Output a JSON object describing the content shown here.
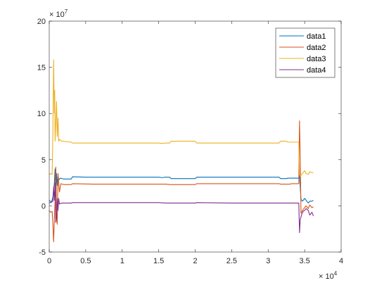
{
  "chart_data": {
    "type": "line",
    "title": "",
    "xlabel": "",
    "ylabel": "",
    "xlim": [
      0,
      4
    ],
    "ylim": [
      -5,
      20
    ],
    "x_exponent_label": {
      "base": "× 10",
      "exp": "4"
    },
    "y_exponent_label": {
      "base": "× 10",
      "exp": "7"
    },
    "x_ticks": [
      "0",
      "0.5",
      "1",
      "1.5",
      "2",
      "2.5",
      "3",
      "3.5",
      "4"
    ],
    "y_ticks": [
      "-5",
      "0",
      "5",
      "10",
      "15",
      "20"
    ],
    "legend_position": "top-right",
    "grid": false,
    "series": [
      {
        "name": "data1",
        "color": "#0072BD",
        "points": [
          [
            0.0,
            0.6
          ],
          [
            0.03,
            0.4
          ],
          [
            0.05,
            0.9
          ],
          [
            0.06,
            1.8
          ],
          [
            0.07,
            2.4
          ],
          [
            0.08,
            4.0
          ],
          [
            0.09,
            1.0
          ],
          [
            0.1,
            3.5
          ],
          [
            0.11,
            2.2
          ],
          [
            0.12,
            3.2
          ],
          [
            0.13,
            2.8
          ],
          [
            0.15,
            3.0
          ],
          [
            0.2,
            2.9
          ],
          [
            0.3,
            2.9
          ],
          [
            0.32,
            3.15
          ],
          [
            0.5,
            3.1
          ],
          [
            1.0,
            3.1
          ],
          [
            1.5,
            3.1
          ],
          [
            1.55,
            3.05
          ],
          [
            1.58,
            3.1
          ],
          [
            1.65,
            3.1
          ],
          [
            1.67,
            2.95
          ],
          [
            2.0,
            2.95
          ],
          [
            2.02,
            3.1
          ],
          [
            2.5,
            3.1
          ],
          [
            3.0,
            3.1
          ],
          [
            3.15,
            3.1
          ],
          [
            3.17,
            2.95
          ],
          [
            3.25,
            2.95
          ],
          [
            3.27,
            3.0
          ],
          [
            3.42,
            3.0
          ],
          [
            3.43,
            3.3
          ],
          [
            3.45,
            0.7
          ],
          [
            3.47,
            0.5
          ],
          [
            3.5,
            0.8
          ],
          [
            3.52,
            0.6
          ],
          [
            3.55,
            0.3
          ],
          [
            3.57,
            0.5
          ],
          [
            3.6,
            0.5
          ],
          [
            3.62,
            0.6
          ]
        ]
      },
      {
        "name": "data2",
        "color": "#D95319",
        "points": [
          [
            0.0,
            -0.5
          ],
          [
            0.02,
            -0.7
          ],
          [
            0.04,
            -0.6
          ],
          [
            0.05,
            -2.0
          ],
          [
            0.06,
            -3.9
          ],
          [
            0.07,
            -1.5
          ],
          [
            0.08,
            0.5
          ],
          [
            0.09,
            4.2
          ],
          [
            0.1,
            -1.0
          ],
          [
            0.11,
            -2.0
          ],
          [
            0.12,
            3.5
          ],
          [
            0.13,
            2.5
          ],
          [
            0.14,
            1.5
          ],
          [
            0.16,
            2.4
          ],
          [
            0.2,
            2.3
          ],
          [
            0.3,
            2.3
          ],
          [
            0.32,
            2.4
          ],
          [
            0.6,
            2.35
          ],
          [
            1.0,
            2.35
          ],
          [
            1.5,
            2.35
          ],
          [
            1.6,
            2.35
          ],
          [
            1.65,
            2.3
          ],
          [
            2.0,
            2.3
          ],
          [
            2.02,
            2.4
          ],
          [
            2.5,
            2.4
          ],
          [
            3.0,
            2.4
          ],
          [
            3.15,
            2.4
          ],
          [
            3.17,
            2.35
          ],
          [
            3.3,
            2.35
          ],
          [
            3.32,
            2.4
          ],
          [
            3.42,
            2.4
          ],
          [
            3.43,
            9.2
          ],
          [
            3.44,
            5.0
          ],
          [
            3.45,
            -0.8
          ],
          [
            3.47,
            -0.5
          ],
          [
            3.5,
            -0.2
          ],
          [
            3.52,
            0.0
          ],
          [
            3.55,
            -0.3
          ],
          [
            3.57,
            0.1
          ],
          [
            3.6,
            -0.2
          ],
          [
            3.62,
            -0.1
          ]
        ]
      },
      {
        "name": "data3",
        "color": "#EDB120",
        "points": [
          [
            0.0,
            3.4
          ],
          [
            0.02,
            3.5
          ],
          [
            0.04,
            3.4
          ],
          [
            0.05,
            8.0
          ],
          [
            0.06,
            15.8
          ],
          [
            0.07,
            10.0
          ],
          [
            0.075,
            12.5
          ],
          [
            0.08,
            7.0
          ],
          [
            0.09,
            9.0
          ],
          [
            0.1,
            11.3
          ],
          [
            0.11,
            7.5
          ],
          [
            0.12,
            9.5
          ],
          [
            0.13,
            7.0
          ],
          [
            0.14,
            7.2
          ],
          [
            0.17,
            7.0
          ],
          [
            0.3,
            6.9
          ],
          [
            0.32,
            6.8
          ],
          [
            0.6,
            6.8
          ],
          [
            1.0,
            6.8
          ],
          [
            1.5,
            6.8
          ],
          [
            1.55,
            6.75
          ],
          [
            1.58,
            6.8
          ],
          [
            1.65,
            6.8
          ],
          [
            1.67,
            7.0
          ],
          [
            2.0,
            7.0
          ],
          [
            2.02,
            6.8
          ],
          [
            2.5,
            6.8
          ],
          [
            3.0,
            6.8
          ],
          [
            3.15,
            6.8
          ],
          [
            3.17,
            7.0
          ],
          [
            3.25,
            7.0
          ],
          [
            3.27,
            6.9
          ],
          [
            3.42,
            6.9
          ],
          [
            3.43,
            3.6
          ],
          [
            3.44,
            3.2
          ],
          [
            3.47,
            3.5
          ],
          [
            3.5,
            3.8
          ],
          [
            3.52,
            3.5
          ],
          [
            3.55,
            3.4
          ],
          [
            3.57,
            3.7
          ],
          [
            3.6,
            3.6
          ],
          [
            3.62,
            3.6
          ]
        ]
      },
      {
        "name": "data4",
        "color": "#7E2F8E",
        "points": [
          [
            0.0,
            0.3
          ],
          [
            0.03,
            0.4
          ],
          [
            0.05,
            0.5
          ],
          [
            0.06,
            2.0
          ],
          [
            0.07,
            0.6
          ],
          [
            0.08,
            2.5
          ],
          [
            0.09,
            -1.8
          ],
          [
            0.1,
            -1.0
          ],
          [
            0.11,
            0.8
          ],
          [
            0.12,
            -0.5
          ],
          [
            0.13,
            0.8
          ],
          [
            0.14,
            0.2
          ],
          [
            0.17,
            0.3
          ],
          [
            0.3,
            0.3
          ],
          [
            0.32,
            0.35
          ],
          [
            0.8,
            0.35
          ],
          [
            1.0,
            0.35
          ],
          [
            1.5,
            0.35
          ],
          [
            1.6,
            0.3
          ],
          [
            2.0,
            0.3
          ],
          [
            2.02,
            0.35
          ],
          [
            2.5,
            0.3
          ],
          [
            3.0,
            0.3
          ],
          [
            3.4,
            0.3
          ],
          [
            3.42,
            0.3
          ],
          [
            3.43,
            -2.9
          ],
          [
            3.44,
            -1.5
          ],
          [
            3.46,
            -0.9
          ],
          [
            3.48,
            -0.6
          ],
          [
            3.5,
            -0.5
          ],
          [
            3.52,
            -0.3
          ],
          [
            3.55,
            -0.5
          ],
          [
            3.57,
            -1.0
          ],
          [
            3.6,
            -0.7
          ],
          [
            3.62,
            -1.1
          ]
        ]
      }
    ]
  }
}
